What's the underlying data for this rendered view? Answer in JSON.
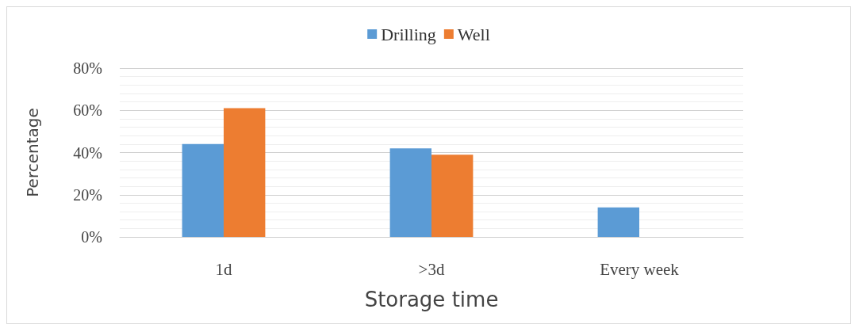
{
  "chart_data": {
    "type": "bar",
    "xlabel": "Storage time",
    "ylabel": "Percentage",
    "categories": [
      "1d",
      ">3d",
      "Every week"
    ],
    "series": [
      {
        "name": "Drilling",
        "color": "#5b9bd5",
        "values": [
          44,
          42,
          14
        ]
      },
      {
        "name": "Well",
        "color": "#ed7d31",
        "values": [
          61,
          39,
          0
        ]
      }
    ],
    "ylim": [
      0,
      80
    ],
    "yticks": [
      {
        "value": 0,
        "label": "0%"
      },
      {
        "value": 20,
        "label": "20%"
      },
      {
        "value": 40,
        "label": "40%"
      },
      {
        "value": 60,
        "label": "60%"
      },
      {
        "value": 80,
        "label": "80%"
      }
    ],
    "grid": "y",
    "legend": "top"
  }
}
